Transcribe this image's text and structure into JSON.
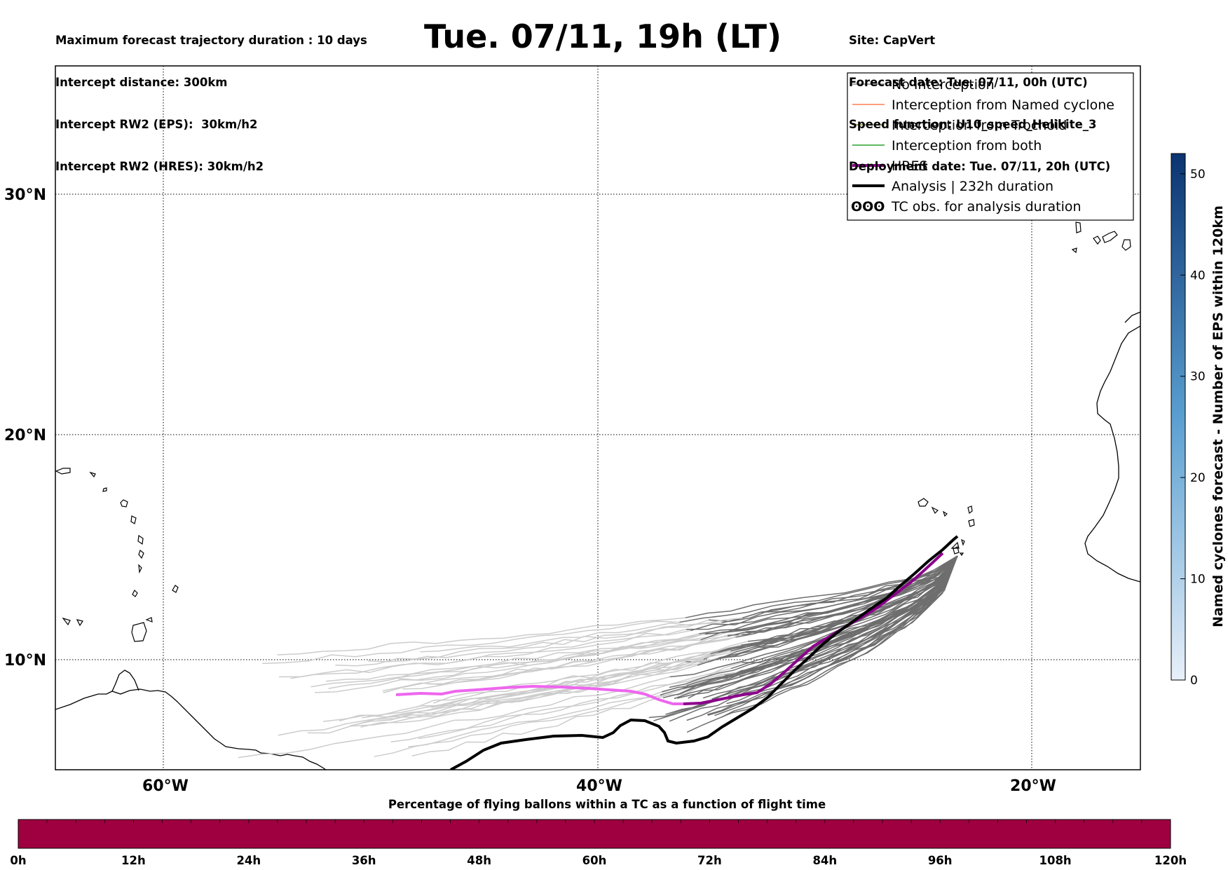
{
  "header": {
    "title": "Tue. 07/11, 19h (LT)",
    "left_lines": [
      "Maximum forecast trajectory duration : 10 days",
      "Intercept distance: 300km",
      "Intercept RW2 (EPS):  30km/h2",
      "Intercept RW2 (HRES): 30km/h2"
    ],
    "right_lines": [
      "Site: CapVert",
      "Forecast date: Tue. 07/11, 00h (UTC)",
      "Speed function: U10_speed_Helikite_3",
      "Deployment date: Tue. 07/11, 20h (UTC)"
    ]
  },
  "map": {
    "lat_labels": [
      "30°N",
      "20°N",
      "10°N"
    ],
    "lon_labels": [
      "60°W",
      "40°W",
      "20°W"
    ],
    "gridlines": "dotted",
    "land_outline_color": "#000000"
  },
  "legend": {
    "position": "top-right",
    "entries": [
      {
        "label": "No Interception",
        "color": "#808080",
        "style": "thin"
      },
      {
        "label": "Interception from Named cyclone",
        "color": "#ff7f50",
        "style": "thin"
      },
      {
        "label": "Interception from Trochoid",
        "color": "#8b8b2e",
        "style": "thin"
      },
      {
        "label": "Interception from both",
        "color": "#2ca02c",
        "style": "thin"
      },
      {
        "label": "HRES",
        "color": "#8b008b",
        "style": "thick"
      },
      {
        "label": "Analysis | 232h duration",
        "color": "#000000",
        "style": "thick"
      },
      {
        "label": "TC obs. for analysis duration",
        "color": "#000000",
        "style": "symbol"
      }
    ],
    "symbol": "ʘʘʘ"
  },
  "trajectories": {
    "hres_color_late": "#8b008b",
    "hres_color_early": "#ee66ee",
    "analysis_color": "#000000",
    "eps_color_near": "#6e6e6e",
    "eps_color_far": "#cccccc"
  },
  "colorbar_right": {
    "label": "Named cyclones forecast - Number of EPS within 120km",
    "ticks": [
      "0",
      "10",
      "20",
      "30",
      "40",
      "50"
    ],
    "color_low": "#e8f0fa",
    "color_high": "#0b3470"
  },
  "colorbar_bottom": {
    "title": "Percentage of flying ballons within a TC as a function of flight time",
    "ticks": [
      "0h",
      "12h",
      "24h",
      "36h",
      "48h",
      "60h",
      "72h",
      "84h",
      "96h",
      "108h",
      "120h"
    ],
    "color": "#9e0040"
  }
}
